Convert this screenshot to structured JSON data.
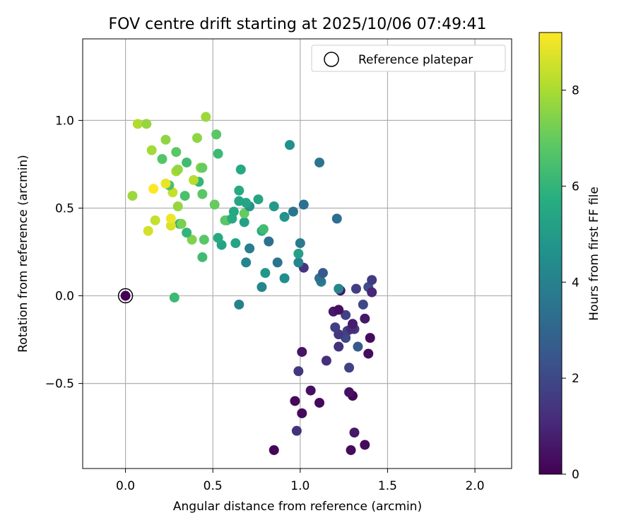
{
  "chart_data": {
    "type": "scatter",
    "title": "FOV centre drift starting at 2025/10/06 07:49:41",
    "xlabel": "Angular distance from reference (arcmin)",
    "ylabel": "Rotation from reference (arcmin)",
    "xlim": [
      -0.245,
      2.21
    ],
    "ylim": [
      -0.985,
      1.465
    ],
    "xticks": [
      0.0,
      0.5,
      1.0,
      1.5,
      2.0
    ],
    "xtick_labels": [
      "0.0",
      "0.5",
      "1.0",
      "1.5",
      "2.0"
    ],
    "yticks": [
      -0.5,
      0.0,
      0.5,
      1.0
    ],
    "ytick_labels": [
      "−0.5",
      "0.0",
      "0.5",
      "1.0"
    ],
    "grid": true,
    "legend": {
      "label": "Reference platepar",
      "position": "top-right"
    },
    "reference_point": {
      "x": 0.0,
      "y": 0.0
    },
    "colorbar": {
      "label": "Hours from first FF file",
      "min": 0,
      "max": 9.2,
      "ticks": [
        0,
        2,
        4,
        6,
        8
      ],
      "tick_labels": [
        "0",
        "2",
        "4",
        "6",
        "8"
      ],
      "colormap": "viridis"
    },
    "points": [
      {
        "x": 0.0,
        "y": 0.0,
        "h": 0.0
      },
      {
        "x": 0.85,
        "y": -0.88,
        "h": 0.1
      },
      {
        "x": 1.29,
        "y": -0.88,
        "h": 0.3
      },
      {
        "x": 1.37,
        "y": -0.85,
        "h": 0.3
      },
      {
        "x": 1.31,
        "y": -0.78,
        "h": 0.6
      },
      {
        "x": 0.98,
        "y": -0.77,
        "h": 1.3
      },
      {
        "x": 1.01,
        "y": -0.67,
        "h": 0.2
      },
      {
        "x": 0.97,
        "y": -0.6,
        "h": 0.2
      },
      {
        "x": 1.11,
        "y": -0.61,
        "h": 0.2
      },
      {
        "x": 1.06,
        "y": -0.54,
        "h": 0.4
      },
      {
        "x": 1.3,
        "y": -0.57,
        "h": 0.1
      },
      {
        "x": 1.28,
        "y": -0.55,
        "h": 0.4
      },
      {
        "x": 0.99,
        "y": -0.43,
        "h": 1.5
      },
      {
        "x": 1.28,
        "y": -0.41,
        "h": 1.8
      },
      {
        "x": 1.15,
        "y": -0.37,
        "h": 1.2
      },
      {
        "x": 1.01,
        "y": -0.32,
        "h": 0.5
      },
      {
        "x": 1.39,
        "y": -0.33,
        "h": 0.3
      },
      {
        "x": 1.22,
        "y": -0.29,
        "h": 1.3
      },
      {
        "x": 1.33,
        "y": -0.29,
        "h": 2.6
      },
      {
        "x": 1.26,
        "y": -0.24,
        "h": 2.0
      },
      {
        "x": 1.4,
        "y": -0.24,
        "h": 0.3
      },
      {
        "x": 1.22,
        "y": -0.22,
        "h": 1.5
      },
      {
        "x": 1.27,
        "y": -0.2,
        "h": 1.8
      },
      {
        "x": 1.31,
        "y": -0.19,
        "h": 1.5
      },
      {
        "x": 1.29,
        "y": -0.19,
        "h": 1.1
      },
      {
        "x": 1.2,
        "y": -0.18,
        "h": 1.7
      },
      {
        "x": 1.3,
        "y": -0.16,
        "h": 0.7
      },
      {
        "x": 1.37,
        "y": -0.13,
        "h": 0.6
      },
      {
        "x": 1.26,
        "y": -0.11,
        "h": 1.8
      },
      {
        "x": 1.19,
        "y": -0.09,
        "h": 0.6
      },
      {
        "x": 1.22,
        "y": -0.08,
        "h": 0.4
      },
      {
        "x": 1.36,
        "y": -0.05,
        "h": 2.0
      },
      {
        "x": 1.23,
        "y": 0.03,
        "h": 0.5
      },
      {
        "x": 1.22,
        "y": 0.04,
        "h": 4.2
      },
      {
        "x": 1.32,
        "y": 0.04,
        "h": 1.7
      },
      {
        "x": 1.39,
        "y": 0.05,
        "h": 2.2
      },
      {
        "x": 1.41,
        "y": 0.02,
        "h": 1.0
      },
      {
        "x": 1.41,
        "y": 0.09,
        "h": 1.6
      },
      {
        "x": 1.12,
        "y": 0.08,
        "h": 3.8
      },
      {
        "x": 1.11,
        "y": 0.1,
        "h": 3.4
      },
      {
        "x": 1.13,
        "y": 0.13,
        "h": 2.6
      },
      {
        "x": 1.02,
        "y": 0.16,
        "h": 1.4
      },
      {
        "x": 0.99,
        "y": 0.19,
        "h": 4.1
      },
      {
        "x": 0.87,
        "y": 0.19,
        "h": 3.5
      },
      {
        "x": 0.99,
        "y": 0.24,
        "h": 5.2
      },
      {
        "x": 1.0,
        "y": 0.3,
        "h": 3.8
      },
      {
        "x": 0.82,
        "y": 0.31,
        "h": 3.4
      },
      {
        "x": 0.71,
        "y": 0.27,
        "h": 3.9
      },
      {
        "x": 0.69,
        "y": 0.19,
        "h": 4.1
      },
      {
        "x": 0.8,
        "y": 0.13,
        "h": 4.8
      },
      {
        "x": 0.91,
        "y": 0.1,
        "h": 4.5
      },
      {
        "x": 0.78,
        "y": 0.05,
        "h": 4.2
      },
      {
        "x": 0.65,
        "y": -0.05,
        "h": 4.0
      },
      {
        "x": 0.28,
        "y": -0.01,
        "h": 6.2
      },
      {
        "x": 0.44,
        "y": 0.22,
        "h": 6.3
      },
      {
        "x": 0.55,
        "y": 0.29,
        "h": 5.3
      },
      {
        "x": 0.63,
        "y": 0.3,
        "h": 5.3
      },
      {
        "x": 0.53,
        "y": 0.33,
        "h": 5.6
      },
      {
        "x": 0.45,
        "y": 0.32,
        "h": 6.8
      },
      {
        "x": 0.38,
        "y": 0.32,
        "h": 7.4
      },
      {
        "x": 0.35,
        "y": 0.36,
        "h": 6.0
      },
      {
        "x": 0.31,
        "y": 0.41,
        "h": 5.6
      },
      {
        "x": 0.32,
        "y": 0.41,
        "h": 7.3
      },
      {
        "x": 0.26,
        "y": 0.4,
        "h": 8.7
      },
      {
        "x": 0.26,
        "y": 0.44,
        "h": 9.0
      },
      {
        "x": 0.17,
        "y": 0.43,
        "h": 8.4
      },
      {
        "x": 0.13,
        "y": 0.37,
        "h": 8.6
      },
      {
        "x": 0.78,
        "y": 0.37,
        "h": 5.6
      },
      {
        "x": 0.79,
        "y": 0.38,
        "h": 6.3
      },
      {
        "x": 0.68,
        "y": 0.42,
        "h": 5.2
      },
      {
        "x": 0.58,
        "y": 0.43,
        "h": 6.2
      },
      {
        "x": 0.57,
        "y": 0.43,
        "h": 6.8
      },
      {
        "x": 0.61,
        "y": 0.44,
        "h": 5.6
      },
      {
        "x": 0.62,
        "y": 0.48,
        "h": 5.5
      },
      {
        "x": 0.68,
        "y": 0.47,
        "h": 7.0
      },
      {
        "x": 0.71,
        "y": 0.51,
        "h": 4.7
      },
      {
        "x": 0.69,
        "y": 0.53,
        "h": 5.4
      },
      {
        "x": 0.65,
        "y": 0.54,
        "h": 5.4
      },
      {
        "x": 0.76,
        "y": 0.55,
        "h": 5.4
      },
      {
        "x": 0.85,
        "y": 0.51,
        "h": 4.9
      },
      {
        "x": 0.91,
        "y": 0.45,
        "h": 4.7
      },
      {
        "x": 0.96,
        "y": 0.48,
        "h": 3.6
      },
      {
        "x": 1.02,
        "y": 0.52,
        "h": 3.4
      },
      {
        "x": 1.21,
        "y": 0.44,
        "h": 3.3
      },
      {
        "x": 0.65,
        "y": 0.6,
        "h": 5.6
      },
      {
        "x": 0.66,
        "y": 0.72,
        "h": 5.5
      },
      {
        "x": 1.11,
        "y": 0.76,
        "h": 3.6
      },
      {
        "x": 0.94,
        "y": 0.86,
        "h": 4.6
      },
      {
        "x": 0.51,
        "y": 0.52,
        "h": 7.0
      },
      {
        "x": 0.44,
        "y": 0.58,
        "h": 6.8
      },
      {
        "x": 0.34,
        "y": 0.57,
        "h": 6.5
      },
      {
        "x": 0.3,
        "y": 0.51,
        "h": 7.7
      },
      {
        "x": 0.27,
        "y": 0.59,
        "h": 8.4
      },
      {
        "x": 0.25,
        "y": 0.63,
        "h": 6.5
      },
      {
        "x": 0.23,
        "y": 0.64,
        "h": 8.9
      },
      {
        "x": 0.16,
        "y": 0.61,
        "h": 9.2
      },
      {
        "x": 0.04,
        "y": 0.57,
        "h": 7.8
      },
      {
        "x": 0.42,
        "y": 0.65,
        "h": 6.0
      },
      {
        "x": 0.39,
        "y": 0.66,
        "h": 8.2
      },
      {
        "x": 0.29,
        "y": 0.71,
        "h": 8.0
      },
      {
        "x": 0.3,
        "y": 0.72,
        "h": 7.7
      },
      {
        "x": 0.43,
        "y": 0.73,
        "h": 7.6
      },
      {
        "x": 0.44,
        "y": 0.73,
        "h": 7.0
      },
      {
        "x": 0.35,
        "y": 0.76,
        "h": 6.3
      },
      {
        "x": 0.21,
        "y": 0.78,
        "h": 6.7
      },
      {
        "x": 0.29,
        "y": 0.82,
        "h": 6.8
      },
      {
        "x": 0.15,
        "y": 0.83,
        "h": 7.9
      },
      {
        "x": 0.53,
        "y": 0.81,
        "h": 6.2
      },
      {
        "x": 0.52,
        "y": 0.92,
        "h": 6.8
      },
      {
        "x": 0.41,
        "y": 0.9,
        "h": 7.6
      },
      {
        "x": 0.23,
        "y": 0.89,
        "h": 7.6
      },
      {
        "x": 0.07,
        "y": 0.98,
        "h": 8.1
      },
      {
        "x": 0.12,
        "y": 0.98,
        "h": 7.7
      },
      {
        "x": 0.46,
        "y": 1.02,
        "h": 7.8
      }
    ]
  }
}
